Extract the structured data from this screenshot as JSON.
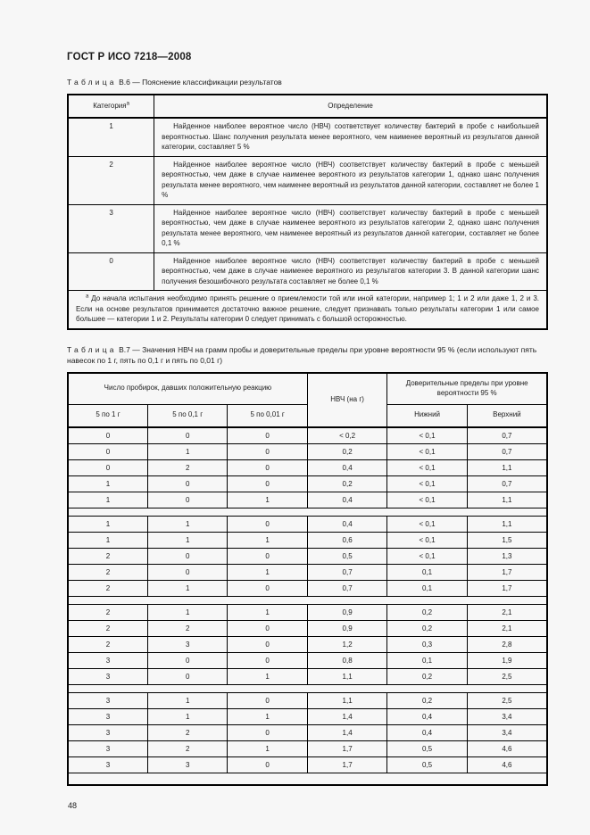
{
  "page": {
    "doc_header": "ГОСТ Р ИСО 7218—2008",
    "page_number": "48"
  },
  "table_b6": {
    "caption_word": "Таблица",
    "caption_rest": "В.6 — Пояснение классификации результатов",
    "col_headers": {
      "category": "Категория",
      "category_sup": "а",
      "definition": "Определение"
    },
    "rows": [
      {
        "category": "1",
        "definition": "Найденное наиболее вероятное число (НВЧ) соответствует количеству бактерий в пробе с наибольшей вероятностью. Шанс получения результата менее вероятного, чем наименее вероятный из результатов данной категории, составляет 5 %"
      },
      {
        "category": "2",
        "definition": "Найденное наиболее вероятное число (НВЧ) соответствует количеству бактерий в пробе с меньшей вероятностью, чем даже в случае наименее вероятного из результатов категории 1, однако шанс получения результата менее вероятного, чем наименее вероятный из результатов данной категории, составляет не более 1 %"
      },
      {
        "category": "3",
        "definition": "Найденное наиболее вероятное число (НВЧ) соответствует количеству бактерий в пробе с меньшей вероятностью, чем даже в случае наименее вероятного из результатов категории 2, однако шанс получения результата менее вероятного, чем наименее вероятный из результатов данной категории, составляет не более 0,1 %"
      },
      {
        "category": "0",
        "definition": "Найденное наиболее вероятное число (НВЧ) соответствует количеству бактерий в пробе с меньшей вероятностью, чем даже в случае наименее вероятного из результатов категории 3. В данной категории шанс получения безошибочного результата составляет не более 0,1 %"
      }
    ],
    "footnote_sup": "а",
    "footnote": "До начала испытания необходимо принять решение о приемлемости той или иной категории, например 1; 1 и 2 или даже 1, 2 и 3. Если на основе результатов принимается достаточно важное решение, следует признавать только результаты категории 1 или самое большее — категории 1 и 2. Результаты категории 0 следует принимать с большой осторожностью."
  },
  "table_b7": {
    "caption_word": "Таблица",
    "caption_rest": "В.7 — Значения НВЧ на грамм пробы и доверительные пределы при уровне вероятности 95 % (если используют пять навесок по 1 г, пять по 0,1 г и пять по 0,01 г)",
    "header": {
      "tubes_group": "Число пробирок, давших положительную реакцию",
      "col_1g": "5 по 1 г",
      "col_01g": "5 по 0,1 г",
      "col_001g": "5 по 0,01 г",
      "mpn": "НВЧ (на г)",
      "limits_group": "Доверительные пределы при уровне вероятности 95 %",
      "lower": "Нижний",
      "upper": "Верхний"
    },
    "groups": [
      [
        [
          "0",
          "0",
          "0",
          "< 0,2",
          "< 0,1",
          "0,7"
        ],
        [
          "0",
          "1",
          "0",
          "0,2",
          "< 0,1",
          "0,7"
        ],
        [
          "0",
          "2",
          "0",
          "0,4",
          "< 0,1",
          "1,1"
        ],
        [
          "1",
          "0",
          "0",
          "0,2",
          "< 0,1",
          "0,7"
        ],
        [
          "1",
          "0",
          "1",
          "0,4",
          "< 0,1",
          "1,1"
        ]
      ],
      [
        [
          "1",
          "1",
          "0",
          "0,4",
          "< 0,1",
          "1,1"
        ],
        [
          "1",
          "1",
          "1",
          "0,6",
          "< 0,1",
          "1,5"
        ],
        [
          "2",
          "0",
          "0",
          "0,5",
          "< 0,1",
          "1,3"
        ],
        [
          "2",
          "0",
          "1",
          "0,7",
          "0,1",
          "1,7"
        ],
        [
          "2",
          "1",
          "0",
          "0,7",
          "0,1",
          "1,7"
        ]
      ],
      [
        [
          "2",
          "1",
          "1",
          "0,9",
          "0,2",
          "2,1"
        ],
        [
          "2",
          "2",
          "0",
          "0,9",
          "0,2",
          "2,1"
        ],
        [
          "2",
          "3",
          "0",
          "1,2",
          "0,3",
          "2,8"
        ],
        [
          "3",
          "0",
          "0",
          "0,8",
          "0,1",
          "1,9"
        ],
        [
          "3",
          "0",
          "1",
          "1,1",
          "0,2",
          "2,5"
        ]
      ],
      [
        [
          "3",
          "1",
          "0",
          "1,1",
          "0,2",
          "2,5"
        ],
        [
          "3",
          "1",
          "1",
          "1,4",
          "0,4",
          "3,4"
        ],
        [
          "3",
          "2",
          "0",
          "1,4",
          "0,4",
          "3,4"
        ],
        [
          "3",
          "2",
          "1",
          "1,7",
          "0,5",
          "4,6"
        ],
        [
          "3",
          "3",
          "0",
          "1,7",
          "0,5",
          "4,6"
        ]
      ]
    ]
  }
}
